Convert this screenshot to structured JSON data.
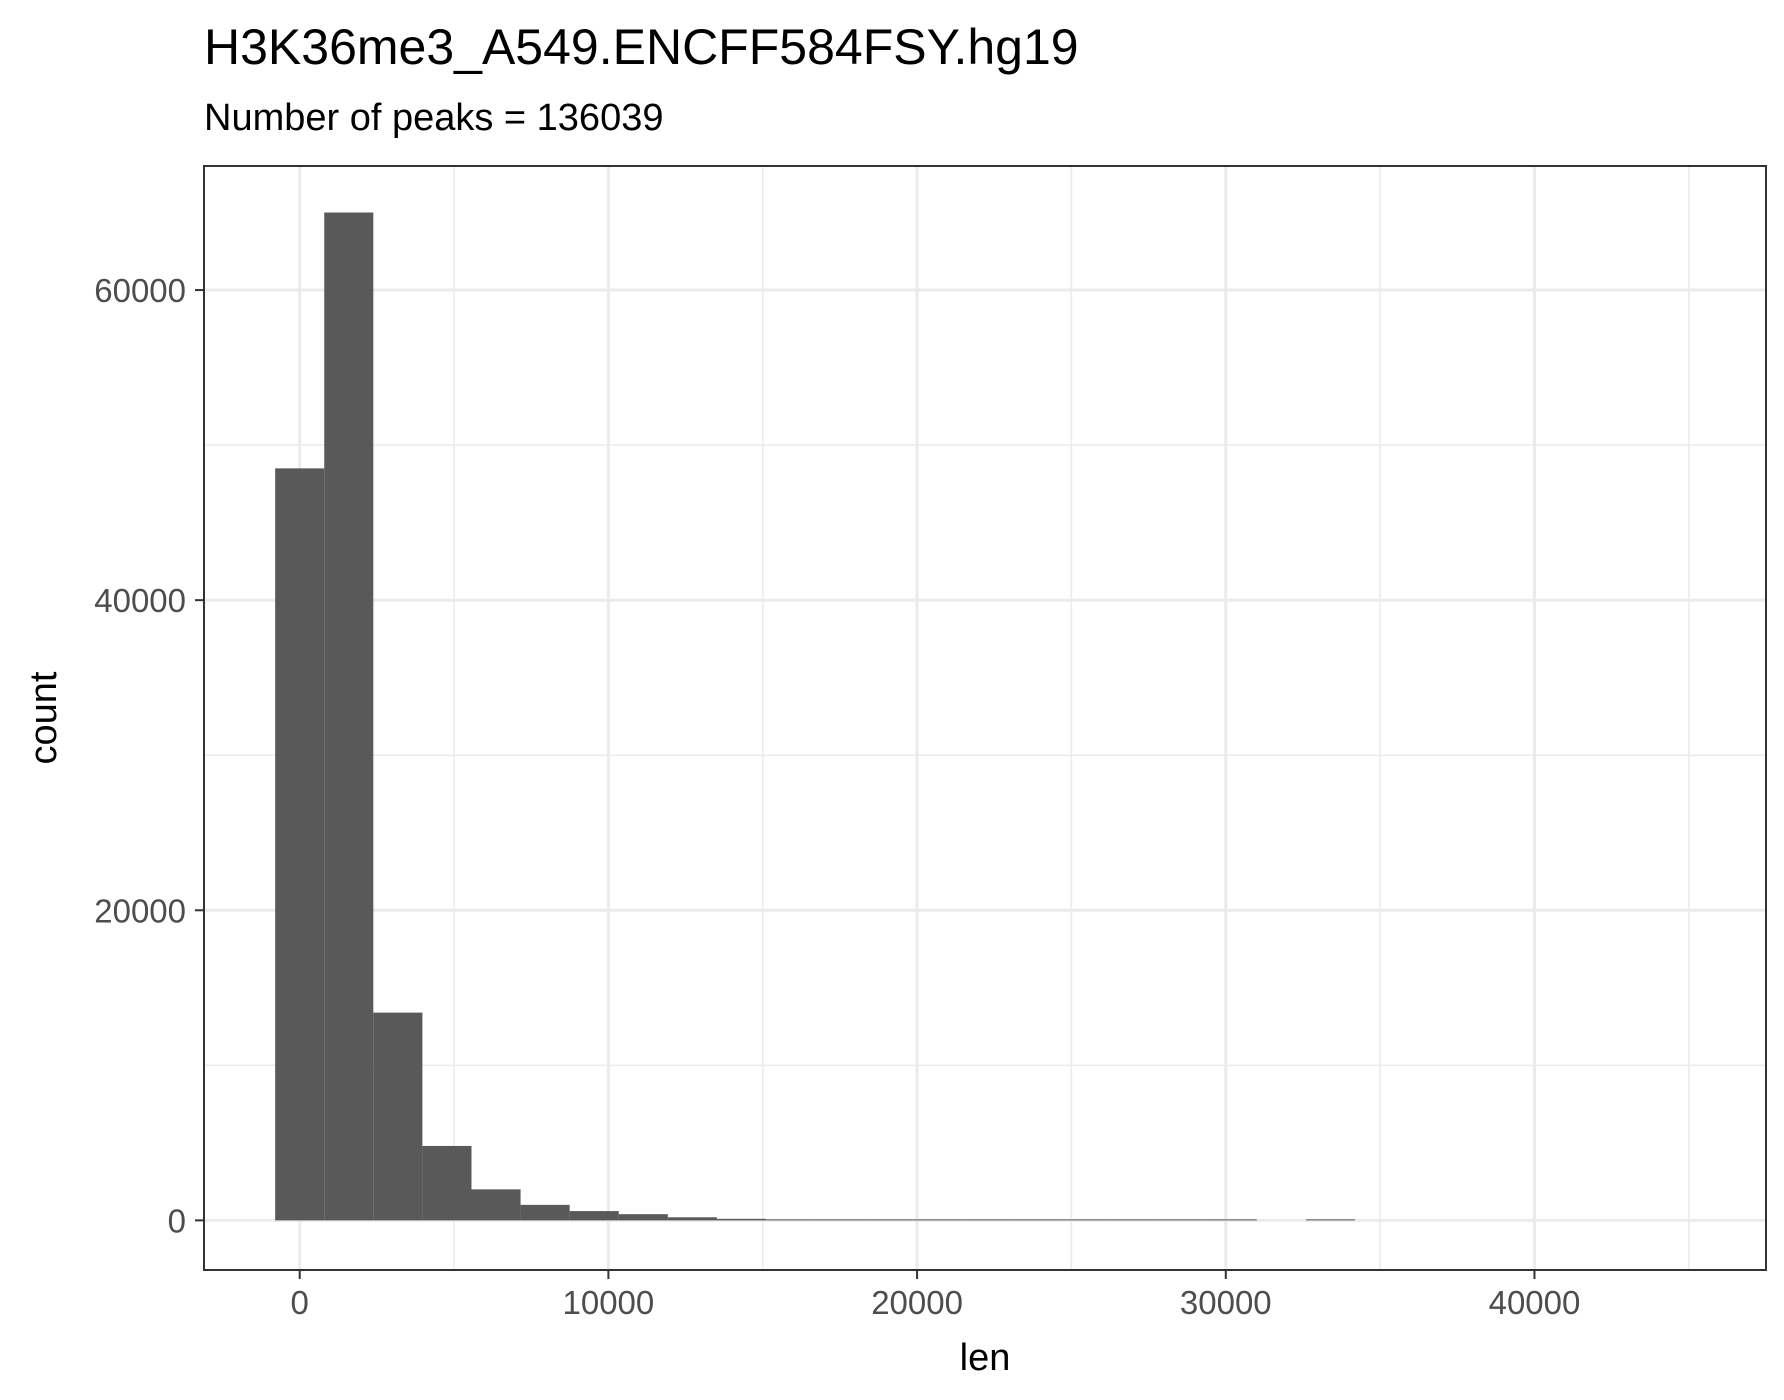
{
  "chart_data": {
    "type": "bar",
    "title": "H3K36me3_A549.ENCFF584FSY.hg19",
    "subtitle": "Number of peaks = 136039",
    "xlabel": "len",
    "ylabel": "count",
    "xlim": [
      -3100,
      47500
    ],
    "ylim": [
      -3200,
      68000
    ],
    "x_ticks": [
      0,
      10000,
      20000,
      30000,
      40000
    ],
    "x_tick_labels": [
      "0",
      "10000",
      "20000",
      "30000",
      "40000"
    ],
    "x_minor_ticks": [
      5000,
      15000,
      25000,
      35000,
      45000
    ],
    "y_ticks": [
      0,
      20000,
      40000,
      60000
    ],
    "y_tick_labels": [
      "0",
      "20000",
      "40000",
      "60000"
    ],
    "y_minor_ticks": [
      10000,
      30000,
      50000
    ],
    "bin_width": 1590,
    "first_bin_start": -795,
    "values": [
      48500,
      65000,
      13400,
      4800,
      2000,
      1000,
      600,
      400,
      200,
      100,
      50,
      30,
      20,
      15,
      10,
      8,
      6,
      5,
      4,
      3,
      0,
      2
    ],
    "bar_color": "#595959",
    "grid_color": "#ebebeb",
    "grid": true,
    "legend": "none"
  }
}
